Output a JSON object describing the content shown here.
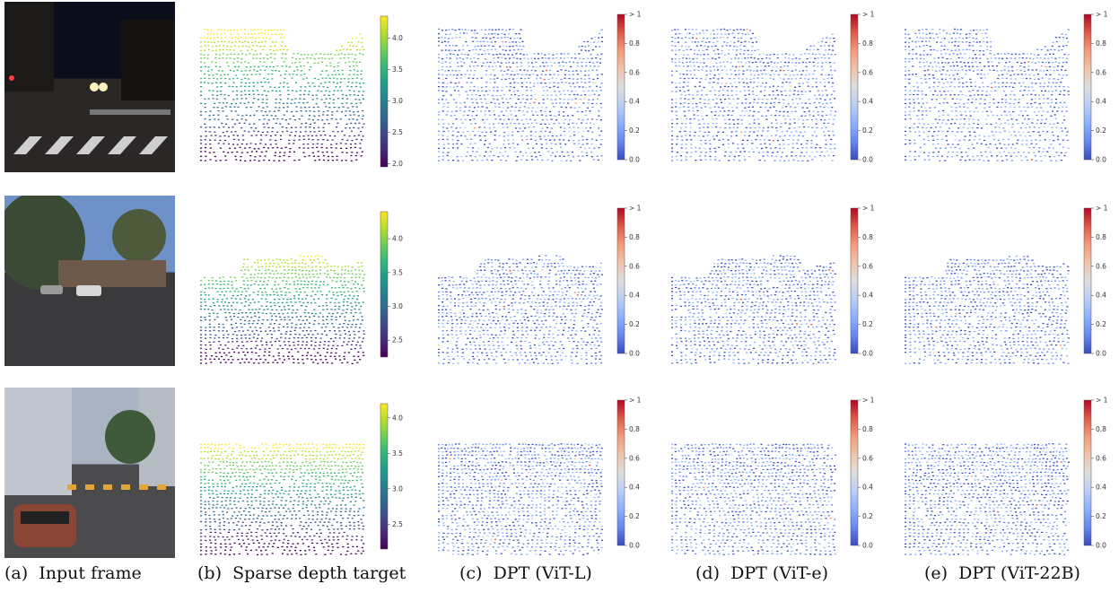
{
  "captions": [
    {
      "letter": "(a)",
      "text": "Input frame"
    },
    {
      "letter": "(b)",
      "text": "Sparse depth target"
    },
    {
      "letter": "(c)",
      "text": "DPT (ViT-L)"
    },
    {
      "letter": "(d)",
      "text": "DPT (ViT-e)"
    },
    {
      "letter": "(e)",
      "text": "DPT (ViT-22B)"
    }
  ],
  "colorbars": {
    "depth": [
      {
        "colormap": "viridis",
        "ticks": [
          "4.0",
          "3.5",
          "3.0",
          "2.5",
          "2.0"
        ],
        "range": [
          1.95,
          4.35
        ]
      },
      {
        "colormap": "viridis",
        "ticks": [
          "4.0",
          "3.5",
          "3.0",
          "2.5"
        ],
        "range": [
          2.25,
          4.4
        ]
      },
      {
        "colormap": "viridis",
        "ticks": [
          "4.0",
          "3.5",
          "3.0",
          "2.5"
        ],
        "range": [
          2.15,
          4.2
        ]
      }
    ],
    "error": {
      "colormap": "coolwarm",
      "ticks": [
        "> 1",
        "0.8",
        "0.6",
        "0.4",
        "0.2",
        "0.0"
      ],
      "range": [
        0,
        1
      ]
    }
  },
  "scenes": [
    {
      "name": "night-intersection",
      "sky": "#0b0e1a",
      "ground": "#2a2726",
      "lights": true
    },
    {
      "name": "dusk-street-trees",
      "sky": "#6e92c8",
      "ground": "#3a3a3c",
      "lights": false
    },
    {
      "name": "city-crosswalk",
      "sky": "#a9b3c2",
      "ground": "#4b4a4d",
      "lights": false
    }
  ]
}
